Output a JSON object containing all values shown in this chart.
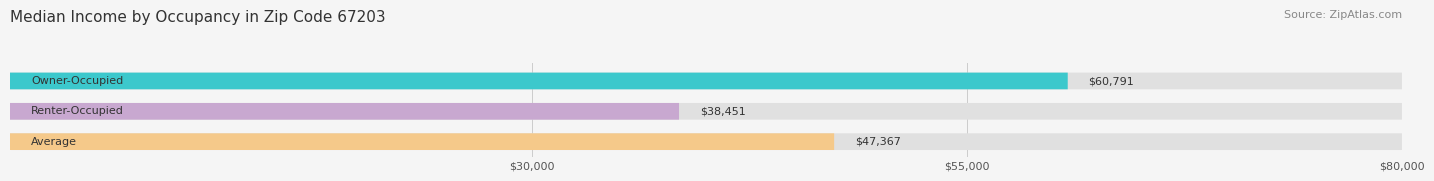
{
  "title": "Median Income by Occupancy in Zip Code 67203",
  "source": "Source: ZipAtlas.com",
  "categories": [
    "Owner-Occupied",
    "Renter-Occupied",
    "Average"
  ],
  "values": [
    60791,
    38451,
    47367
  ],
  "labels": [
    "$60,791",
    "$38,451",
    "$47,367"
  ],
  "bar_colors": [
    "#3cc8cc",
    "#c8a8d0",
    "#f5c98a"
  ],
  "bar_bg_color": "#e0e0e0",
  "xlim": [
    0,
    80000
  ],
  "xticks": [
    30000,
    55000,
    80000
  ],
  "xticklabels": [
    "$30,000",
    "$55,000",
    "$80,000"
  ],
  "title_fontsize": 11,
  "source_fontsize": 8,
  "label_fontsize": 8,
  "cat_fontsize": 8,
  "background_color": "#f5f5f5",
  "bar_height": 0.55
}
